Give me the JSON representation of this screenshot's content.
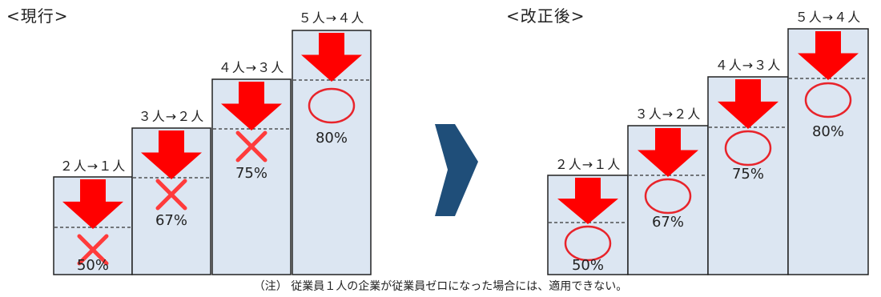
{
  "titles": {
    "left": "<現行>",
    "right": "<改正後>"
  },
  "note": "（注） 従業員１人の企業が従業員ゼロになった場合には、適用できない。",
  "colors": {
    "bar_fill": "#dce6f2",
    "bar_stroke": "#222222",
    "arrow": "#ff0000",
    "cross": "#ff3b3b",
    "circle": "#e8242b",
    "transition_arrow": "#1f4e79"
  },
  "panels": [
    {
      "key": "current",
      "steps": [
        {
          "label": "２人→１人",
          "percent": "50%",
          "mark": "cross"
        },
        {
          "label": "３人→２人",
          "percent": "67%",
          "mark": "cross"
        },
        {
          "label": "４人→３人",
          "percent": "75%",
          "mark": "cross"
        },
        {
          "label": "５人→４人",
          "percent": "80%",
          "mark": "circle"
        }
      ]
    },
    {
      "key": "revised",
      "steps": [
        {
          "label": "２人→１人",
          "percent": "50%",
          "mark": "circle"
        },
        {
          "label": "３人→２人",
          "percent": "67%",
          "mark": "circle"
        },
        {
          "label": "４人→３人",
          "percent": "75%",
          "mark": "circle"
        },
        {
          "label": "５人→４人",
          "percent": "80%",
          "mark": "circle"
        }
      ]
    }
  ]
}
